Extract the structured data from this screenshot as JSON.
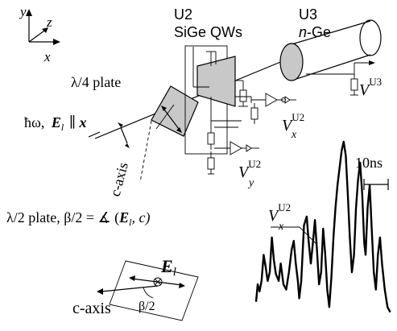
{
  "axes": {
    "y": "y",
    "z": "z",
    "x": "x"
  },
  "beam": {
    "energy": "ħω,",
    "field": "E",
    "field_sub": "l",
    "parallel": "∥",
    "axis": "x"
  },
  "qwp": {
    "label": "λ/4 plate",
    "axis_label": "c-axis"
  },
  "u2": {
    "name": "U2",
    "desc": "SiGe QWs"
  },
  "u3": {
    "name": "U3",
    "desc_prefix": "n",
    "desc_suffix": "-Ge"
  },
  "outputs": {
    "vu3_main": "V",
    "vu3_sup": "U3",
    "vx_main": "V",
    "vx_sub": "x",
    "vx_sup": "U2",
    "vy_main": "V",
    "vy_sub": "y",
    "vy_sup": "U2"
  },
  "hwp": {
    "label_a": "λ/2 plate, β/2 = ∡ (",
    "label_e": "E",
    "label_l": "l",
    "label_b": ", c)",
    "inset_e": "E",
    "inset_l": "l",
    "inset_caxis": "c-axis",
    "inset_beta": "β/2"
  },
  "signal": {
    "label_main": "V",
    "label_sub": "x",
    "label_sup": "U2",
    "scale": "10ns",
    "trace": [
      [
        0,
        0.08
      ],
      [
        0.012,
        0.18
      ],
      [
        0.025,
        0.14
      ],
      [
        0.04,
        0.2
      ],
      [
        0.055,
        0.35
      ],
      [
        0.07,
        0.28
      ],
      [
        0.085,
        0.2
      ],
      [
        0.1,
        0.25
      ],
      [
        0.115,
        0.45
      ],
      [
        0.13,
        0.32
      ],
      [
        0.145,
        0.24
      ],
      [
        0.165,
        0.2
      ],
      [
        0.18,
        0.3
      ],
      [
        0.2,
        0.18
      ],
      [
        0.22,
        0.15
      ],
      [
        0.24,
        0.25
      ],
      [
        0.26,
        0.38
      ],
      [
        0.275,
        0.43
      ],
      [
        0.29,
        0.3
      ],
      [
        0.305,
        0.2
      ],
      [
        0.315,
        0.1
      ],
      [
        0.33,
        0.2
      ],
      [
        0.35,
        0.52
      ],
      [
        0.37,
        0.57
      ],
      [
        0.385,
        0.42
      ],
      [
        0.4,
        0.3
      ],
      [
        0.415,
        0.42
      ],
      [
        0.43,
        0.55
      ],
      [
        0.445,
        0.38
      ],
      [
        0.46,
        0.18
      ],
      [
        0.475,
        0.25
      ],
      [
        0.49,
        0.5
      ],
      [
        0.505,
        0.35
      ],
      [
        0.52,
        0.15
      ],
      [
        0.535,
        0.05
      ],
      [
        0.55,
        0.22
      ],
      [
        0.565,
        0.45
      ],
      [
        0.58,
        0.62
      ],
      [
        0.595,
        0.75
      ],
      [
        0.61,
        0.85
      ],
      [
        0.625,
        0.95
      ],
      [
        0.64,
        1.0
      ],
      [
        0.655,
        0.92
      ],
      [
        0.67,
        0.7
      ],
      [
        0.685,
        0.45
      ],
      [
        0.7,
        0.25
      ],
      [
        0.715,
        0.35
      ],
      [
        0.73,
        0.62
      ],
      [
        0.745,
        0.78
      ],
      [
        0.76,
        0.88
      ],
      [
        0.775,
        0.7
      ],
      [
        0.79,
        0.42
      ],
      [
        0.8,
        0.35
      ],
      [
        0.815,
        0.62
      ],
      [
        0.83,
        0.75
      ],
      [
        0.845,
        0.5
      ],
      [
        0.86,
        0.25
      ],
      [
        0.875,
        0.15
      ],
      [
        0.89,
        0.35
      ],
      [
        0.905,
        0.45
      ],
      [
        0.92,
        0.3
      ],
      [
        0.94,
        0.15
      ],
      [
        0.96,
        0.05
      ],
      [
        0.98,
        0.02
      ]
    ]
  }
}
